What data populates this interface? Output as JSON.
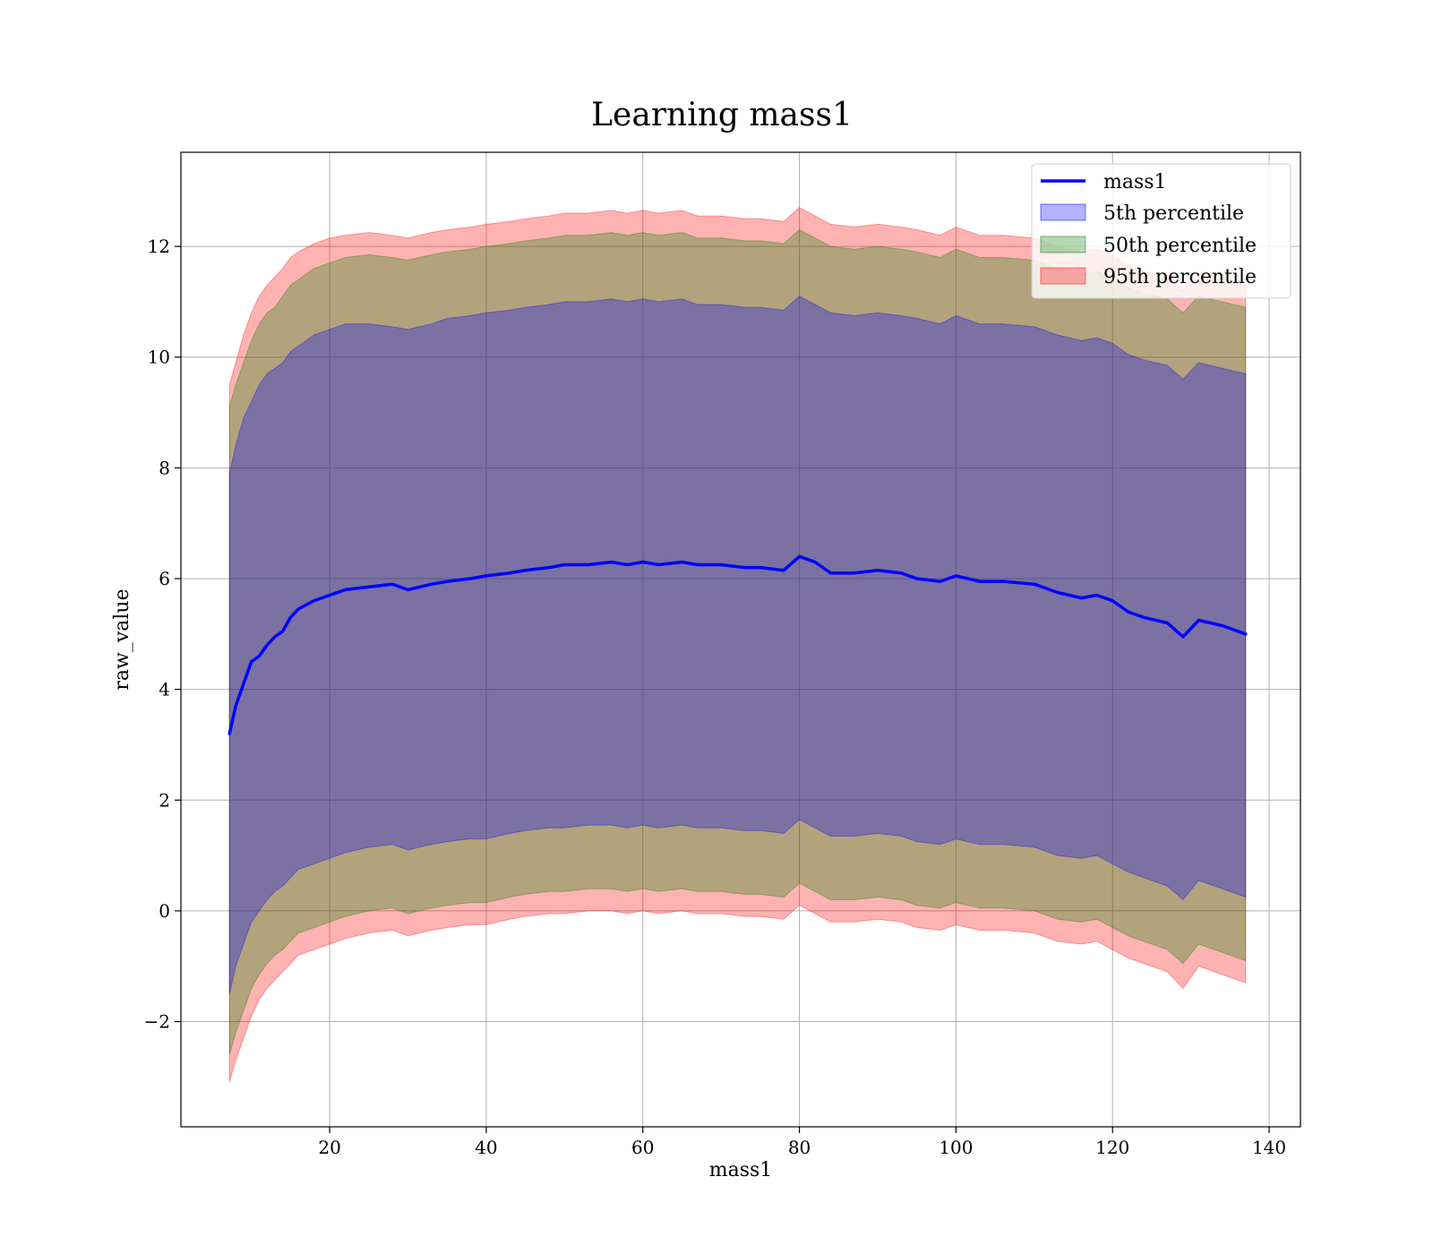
{
  "chart_data": {
    "type": "area",
    "title": "Learning mass1",
    "xlabel": "mass1",
    "ylabel": "raw_value",
    "xlim": [
      1,
      144
    ],
    "ylim": [
      -3.9,
      13.7
    ],
    "x_ticks": [
      20,
      40,
      60,
      80,
      100,
      120,
      140
    ],
    "y_ticks": [
      -2,
      0,
      2,
      4,
      6,
      8,
      10,
      12
    ],
    "y_tick_labels": [
      "−2",
      "0",
      "2",
      "4",
      "6",
      "8",
      "10",
      "12"
    ],
    "grid": true,
    "legend_position": "top-right",
    "line": {
      "name": "mass1",
      "color": "#0000ff",
      "x": [
        7.2,
        8,
        9,
        10,
        11,
        12,
        13,
        14,
        15,
        16,
        18,
        20,
        22,
        25,
        28,
        30,
        33,
        35,
        38,
        40,
        43,
        45,
        48,
        50,
        53,
        56,
        58,
        60,
        62,
        65,
        67,
        70,
        73,
        75,
        78,
        80,
        82,
        84,
        87,
        90,
        93,
        95,
        98,
        100,
        103,
        106,
        110,
        113,
        116,
        118,
        120,
        122,
        124,
        127,
        129,
        131,
        134,
        137
      ],
      "y": [
        3.2,
        3.7,
        4.1,
        4.5,
        4.6,
        4.8,
        4.95,
        5.05,
        5.3,
        5.45,
        5.6,
        5.7,
        5.8,
        5.85,
        5.9,
        5.8,
        5.9,
        5.95,
        6.0,
        6.05,
        6.1,
        6.15,
        6.2,
        6.25,
        6.25,
        6.3,
        6.25,
        6.3,
        6.25,
        6.3,
        6.25,
        6.25,
        6.2,
        6.2,
        6.15,
        6.4,
        6.3,
        6.1,
        6.1,
        6.15,
        6.1,
        6.0,
        5.95,
        6.05,
        5.95,
        5.95,
        5.9,
        5.75,
        5.65,
        5.7,
        5.6,
        5.4,
        5.3,
        5.2,
        4.95,
        5.25,
        5.15,
        5.0
      ]
    },
    "bands": [
      {
        "name": "5th percentile",
        "color": "#0000ff",
        "x": [
          7.2,
          8,
          9,
          10,
          11,
          12,
          13,
          14,
          15,
          16,
          18,
          20,
          22,
          25,
          28,
          30,
          33,
          35,
          38,
          40,
          43,
          45,
          48,
          50,
          53,
          56,
          58,
          60,
          62,
          65,
          67,
          70,
          73,
          75,
          78,
          80,
          82,
          84,
          87,
          90,
          93,
          95,
          98,
          100,
          103,
          106,
          110,
          113,
          116,
          118,
          120,
          122,
          124,
          127,
          129,
          131,
          134,
          137
        ],
        "upper": [
          7.9,
          8.4,
          8.9,
          9.2,
          9.5,
          9.7,
          9.8,
          9.9,
          10.1,
          10.2,
          10.4,
          10.5,
          10.6,
          10.6,
          10.55,
          10.5,
          10.6,
          10.7,
          10.75,
          10.8,
          10.85,
          10.9,
          10.95,
          11.0,
          11.0,
          11.05,
          11.0,
          11.05,
          11.0,
          11.05,
          10.95,
          10.95,
          10.9,
          10.9,
          10.85,
          11.1,
          10.95,
          10.8,
          10.75,
          10.8,
          10.75,
          10.7,
          10.6,
          10.75,
          10.6,
          10.6,
          10.55,
          10.4,
          10.3,
          10.35,
          10.25,
          10.05,
          9.95,
          9.85,
          9.6,
          9.9,
          9.8,
          9.7
        ],
        "lower": [
          -1.5,
          -1.0,
          -0.6,
          -0.2,
          0.0,
          0.2,
          0.35,
          0.45,
          0.6,
          0.75,
          0.85,
          0.95,
          1.05,
          1.15,
          1.2,
          1.1,
          1.2,
          1.25,
          1.3,
          1.3,
          1.4,
          1.45,
          1.5,
          1.5,
          1.55,
          1.55,
          1.5,
          1.55,
          1.5,
          1.55,
          1.5,
          1.5,
          1.45,
          1.45,
          1.4,
          1.65,
          1.5,
          1.35,
          1.35,
          1.4,
          1.35,
          1.25,
          1.2,
          1.3,
          1.2,
          1.2,
          1.15,
          1.0,
          0.95,
          1.0,
          0.85,
          0.7,
          0.6,
          0.45,
          0.2,
          0.55,
          0.4,
          0.25
        ]
      },
      {
        "name": "50th percentile",
        "color": "#008000",
        "x": [
          7.2,
          8,
          9,
          10,
          11,
          12,
          13,
          14,
          15,
          16,
          18,
          20,
          22,
          25,
          28,
          30,
          33,
          35,
          38,
          40,
          43,
          45,
          48,
          50,
          53,
          56,
          58,
          60,
          62,
          65,
          67,
          70,
          73,
          75,
          78,
          80,
          82,
          84,
          87,
          90,
          93,
          95,
          98,
          100,
          103,
          106,
          110,
          113,
          116,
          118,
          120,
          122,
          124,
          127,
          129,
          131,
          134,
          137
        ],
        "upper": [
          9.1,
          9.5,
          9.9,
          10.3,
          10.6,
          10.8,
          10.9,
          11.1,
          11.3,
          11.4,
          11.6,
          11.7,
          11.8,
          11.85,
          11.8,
          11.75,
          11.85,
          11.9,
          11.95,
          12.0,
          12.05,
          12.1,
          12.15,
          12.2,
          12.2,
          12.25,
          12.2,
          12.25,
          12.2,
          12.25,
          12.15,
          12.15,
          12.1,
          12.1,
          12.05,
          12.3,
          12.15,
          12.0,
          11.95,
          12.0,
          11.95,
          11.9,
          11.8,
          11.95,
          11.8,
          11.8,
          11.75,
          11.6,
          11.5,
          11.55,
          11.45,
          11.25,
          11.15,
          11.05,
          10.8,
          11.1,
          11.0,
          10.9
        ],
        "lower": [
          -2.6,
          -2.2,
          -1.8,
          -1.4,
          -1.15,
          -0.95,
          -0.8,
          -0.7,
          -0.55,
          -0.4,
          -0.3,
          -0.2,
          -0.1,
          0.0,
          0.05,
          -0.05,
          0.05,
          0.1,
          0.15,
          0.15,
          0.25,
          0.3,
          0.35,
          0.35,
          0.4,
          0.4,
          0.35,
          0.4,
          0.35,
          0.4,
          0.35,
          0.35,
          0.3,
          0.3,
          0.25,
          0.5,
          0.35,
          0.2,
          0.2,
          0.25,
          0.2,
          0.1,
          0.05,
          0.15,
          0.05,
          0.05,
          0.0,
          -0.15,
          -0.2,
          -0.15,
          -0.3,
          -0.45,
          -0.55,
          -0.7,
          -0.95,
          -0.6,
          -0.75,
          -0.9
        ]
      },
      {
        "name": "95th percentile",
        "color": "#ff0000",
        "x": [
          7.2,
          8,
          9,
          10,
          11,
          12,
          13,
          14,
          15,
          16,
          18,
          20,
          22,
          25,
          28,
          30,
          33,
          35,
          38,
          40,
          43,
          45,
          48,
          50,
          53,
          56,
          58,
          60,
          62,
          65,
          67,
          70,
          73,
          75,
          78,
          80,
          82,
          84,
          87,
          90,
          93,
          95,
          98,
          100,
          103,
          106,
          110,
          113,
          116,
          118,
          120,
          122,
          124,
          127,
          129,
          131,
          134,
          137
        ],
        "upper": [
          9.5,
          9.9,
          10.4,
          10.8,
          11.1,
          11.3,
          11.45,
          11.6,
          11.8,
          11.9,
          12.05,
          12.15,
          12.2,
          12.25,
          12.2,
          12.15,
          12.25,
          12.3,
          12.35,
          12.4,
          12.45,
          12.5,
          12.55,
          12.6,
          12.6,
          12.65,
          12.6,
          12.65,
          12.6,
          12.65,
          12.55,
          12.55,
          12.5,
          12.5,
          12.45,
          12.7,
          12.55,
          12.4,
          12.35,
          12.4,
          12.35,
          12.3,
          12.2,
          12.35,
          12.2,
          12.2,
          12.15,
          12.0,
          11.9,
          11.95,
          11.85,
          11.65,
          11.55,
          11.45,
          11.2,
          11.5,
          11.4,
          11.3
        ],
        "lower": [
          -3.1,
          -2.7,
          -2.3,
          -1.9,
          -1.6,
          -1.4,
          -1.25,
          -1.1,
          -0.95,
          -0.8,
          -0.7,
          -0.6,
          -0.5,
          -0.4,
          -0.35,
          -0.45,
          -0.35,
          -0.3,
          -0.25,
          -0.25,
          -0.15,
          -0.1,
          -0.05,
          -0.05,
          0.0,
          0.0,
          -0.05,
          0.0,
          -0.05,
          0.0,
          -0.05,
          -0.05,
          -0.1,
          -0.1,
          -0.15,
          0.1,
          -0.05,
          -0.2,
          -0.2,
          -0.15,
          -0.2,
          -0.3,
          -0.35,
          -0.25,
          -0.35,
          -0.35,
          -0.4,
          -0.55,
          -0.6,
          -0.55,
          -0.7,
          -0.85,
          -0.95,
          -1.1,
          -1.4,
          -1.0,
          -1.15,
          -1.3
        ]
      }
    ]
  }
}
